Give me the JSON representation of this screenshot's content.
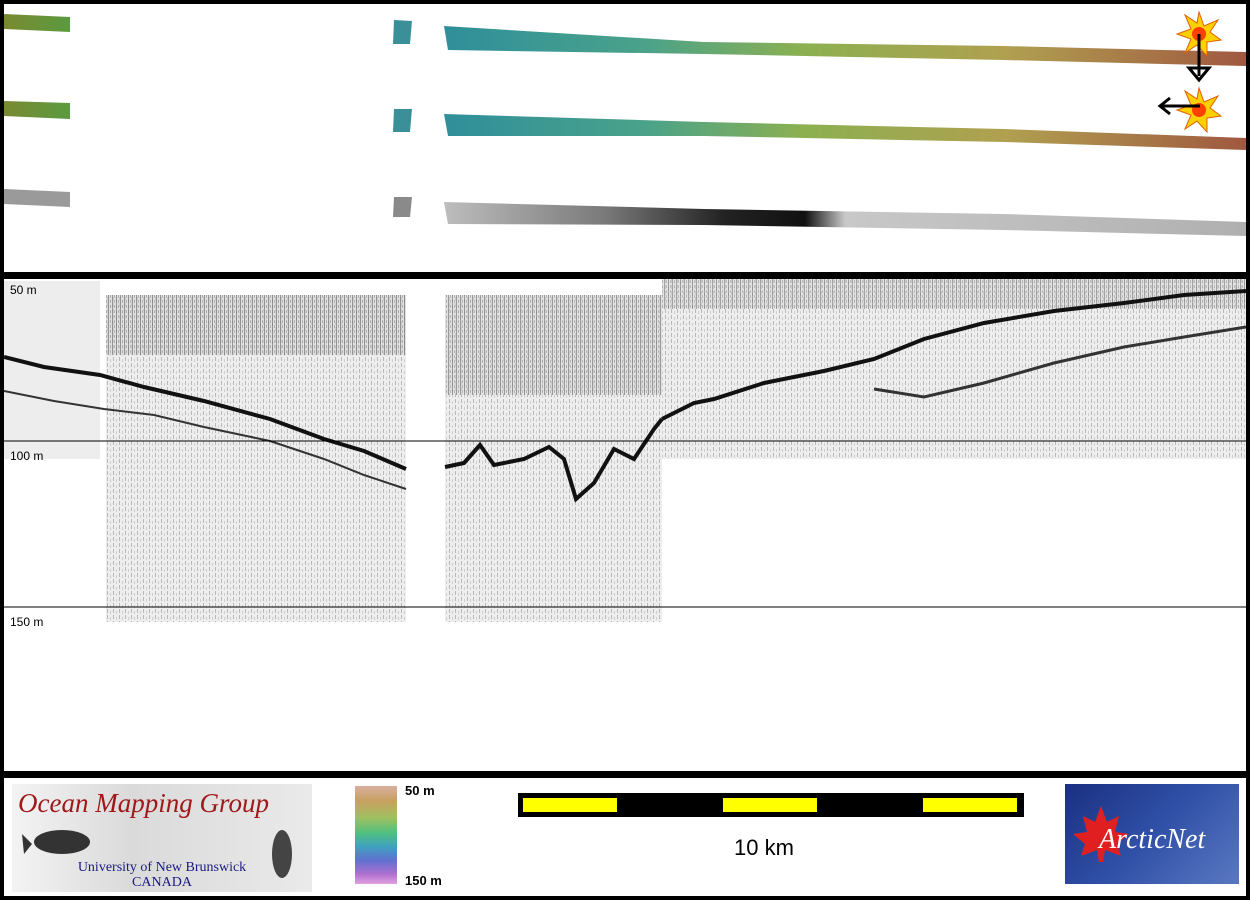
{
  "profile": {
    "depth_labels": [
      "50 m",
      "100 m",
      "150 m"
    ]
  },
  "footer": {
    "omg_logo": {
      "title": "Ocean Mapping Group",
      "subtitle_line1": "University of New Brunswick",
      "subtitle_line2": "CANADA"
    },
    "colorbar": {
      "top_label": "50 m",
      "bottom_label": "150 m"
    },
    "scale": {
      "label": "10 km"
    },
    "arcticnet_logo": {
      "text": "ArcticNet"
    }
  },
  "icons": {
    "north_arrow": "sun-arrow-down-icon",
    "west_arrow": "sun-arrow-left-icon"
  },
  "colors": {
    "background": "#000000",
    "scale_fill": "#ffff00",
    "omg_title": "#a01818",
    "omg_subtitle": "#1a1a80"
  }
}
